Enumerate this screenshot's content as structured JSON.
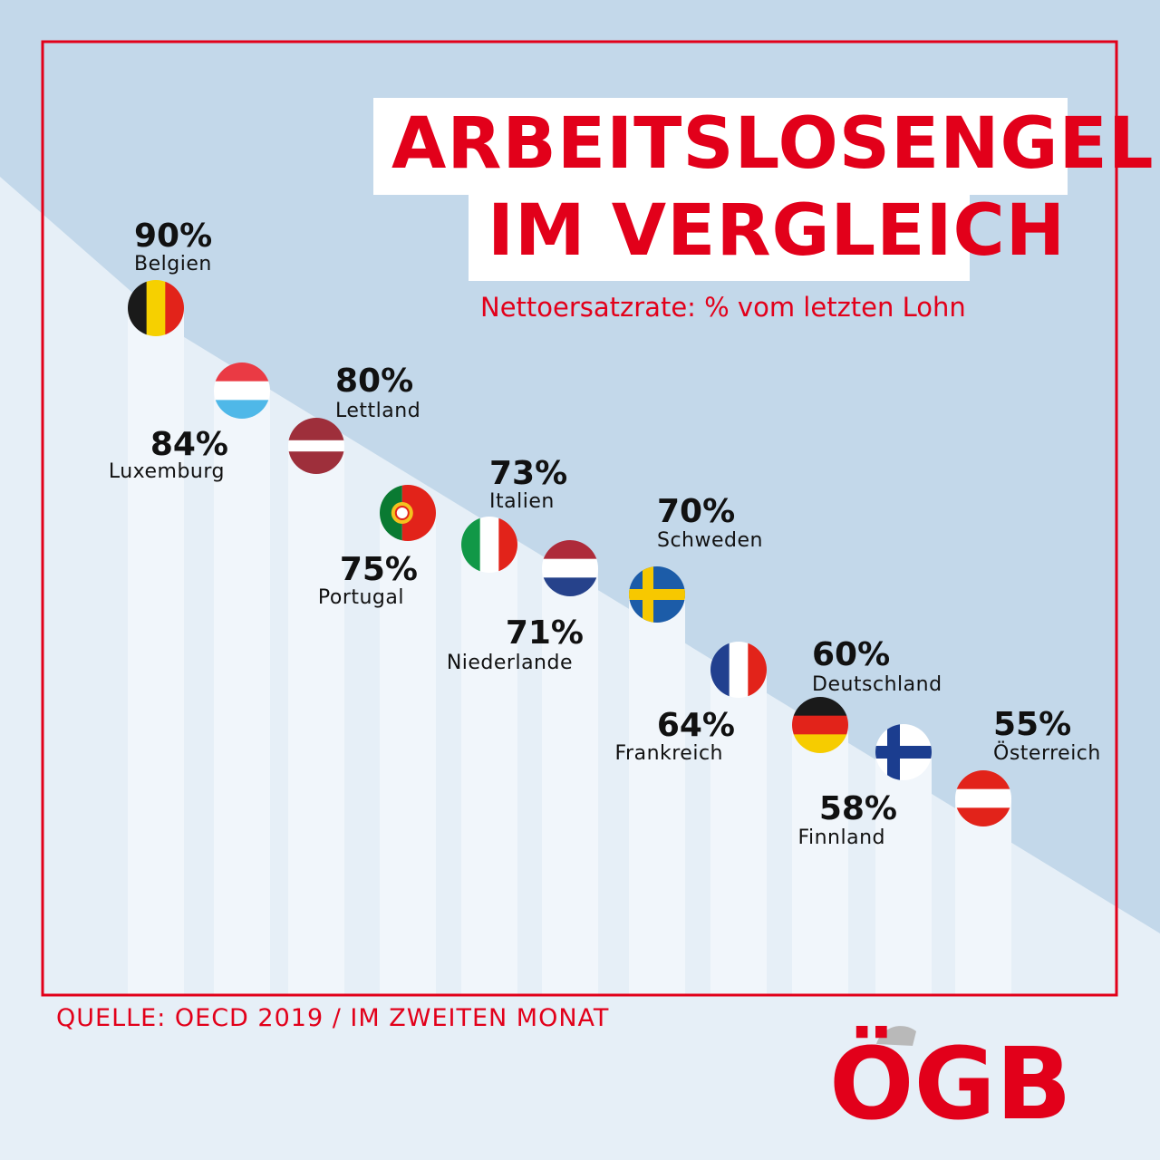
{
  "title_line1": "ARBEITSLOSENGELD",
  "title_line2": "IM VERGLEICH",
  "subtitle": "Nettoersatzrate: % vom letzten Lohn",
  "source": "QUELLE: OECD 2019 / IM ZWEITEN MONAT",
  "logo_text": "ÖGB",
  "colors": {
    "accent": "#e2001a",
    "background": "#c3d8ea",
    "ground": "#e6eff7",
    "bar": "#f1f6fb",
    "frame": "#e2001a"
  },
  "chart_data": {
    "type": "scatter",
    "title": "ARBEITSLOSENGELD IM VERGLEICH",
    "subtitle": "Nettoersatzrate: % vom letzten Lohn",
    "ylabel": "",
    "xlabel": "",
    "ylim": [
      50,
      95
    ],
    "grid": false,
    "legend": "none",
    "categories": [
      "Belgien",
      "Luxemburg",
      "Lettland",
      "Portugal",
      "Italien",
      "Niederlande",
      "Schweden",
      "Frankreich",
      "Deutschland",
      "Finnland",
      "Österreich"
    ],
    "values": [
      90,
      84,
      80,
      75,
      73,
      71,
      70,
      64,
      60,
      58,
      55
    ],
    "value_labels": [
      "90%",
      "84%",
      "80%",
      "75%",
      "73%",
      "71%",
      "70%",
      "64%",
      "60%",
      "58%",
      "55%"
    ],
    "flags": [
      "belgium-flag",
      "luxembourg-flag",
      "latvia-flag",
      "portugal-flag",
      "italy-flag",
      "netherlands-flag",
      "sweden-flag",
      "france-flag",
      "germany-flag",
      "finland-flag",
      "austria-flag"
    ]
  }
}
